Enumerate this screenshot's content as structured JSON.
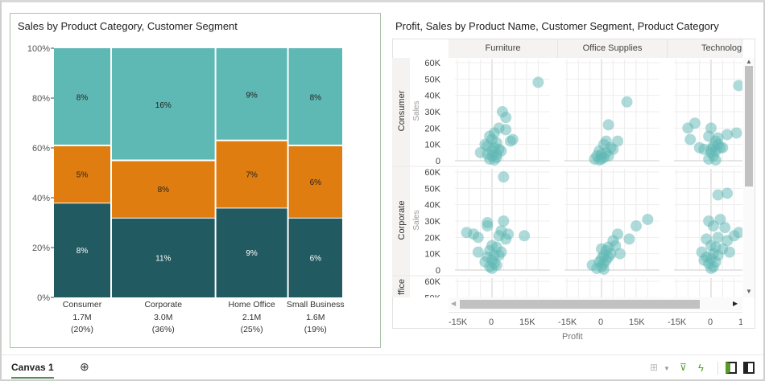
{
  "canvas_tabs": {
    "active": "Canvas 1",
    "add_icon": "plus-circle-icon"
  },
  "toolbar_icons": [
    "layout-grid-icon",
    "chevron-down-icon",
    "brush-icon",
    "lightning-icon",
    "left-panel-icon",
    "right-panel-icon"
  ],
  "chart_data": [
    {
      "type": "mosaic",
      "title": "Sales by Product Category, Customer Segment",
      "categories": [
        "Consumer",
        "Corporate",
        "Home Office",
        "Small Business"
      ],
      "category_totals": [
        "1.7M",
        "3.0M",
        "2.1M",
        "1.6M"
      ],
      "category_shares": [
        "(20%)",
        "(36%)",
        "(25%)",
        "(19%)"
      ],
      "column_widths_pct": [
        20,
        36,
        25,
        19
      ],
      "layer_colors": [
        "#225a62",
        "#df7d10",
        "#5eb8b3"
      ],
      "stacks_pct": [
        [
          38,
          23,
          39
        ],
        [
          32,
          23,
          45
        ],
        [
          36,
          27,
          37
        ],
        [
          32,
          29,
          39
        ]
      ],
      "data_labels": [
        [
          "8%",
          "5%",
          "8%"
        ],
        [
          "11%",
          "8%",
          "16%"
        ],
        [
          "9%",
          "7%",
          "9%"
        ],
        [
          "6%",
          "6%",
          "8%"
        ]
      ],
      "y_ticks": [
        "0%",
        "20%",
        "40%",
        "60%",
        "80%",
        "100%"
      ],
      "ylim": [
        0,
        100
      ]
    },
    {
      "type": "scatter",
      "title": "Profit, Sales by Product Name, Customer Segment, Product Category",
      "columns": [
        "Furniture",
        "Office Supplies",
        "Technology"
      ],
      "rows": [
        "Consumer",
        "Corporate",
        "Home Office"
      ],
      "row_label_visible": [
        "Consumer",
        "Corporate",
        "ffice"
      ],
      "xlabel": "Profit",
      "ylabel": "Sales",
      "x_ticks": [
        "-15K",
        "0",
        "15K"
      ],
      "y_ticks": [
        "0",
        "10K",
        "20K",
        "30K",
        "40K",
        "50K",
        "60K"
      ],
      "xlim": [
        -16,
        25
      ],
      "ylim": [
        0,
        62
      ],
      "units": "K",
      "color": "#5eb8b3",
      "points": {
        "Consumer": {
          "Furniture": [
            [
              20,
              48
            ],
            [
              4.5,
              30
            ],
            [
              6,
              26.5
            ],
            [
              9,
              13
            ],
            [
              8,
              12
            ],
            [
              3,
              20
            ],
            [
              6,
              19
            ],
            [
              1,
              17
            ],
            [
              -1,
              15
            ],
            [
              0,
              13
            ],
            [
              2,
              11
            ],
            [
              -2,
              9
            ],
            [
              1,
              8
            ],
            [
              3,
              7
            ],
            [
              -5,
              5
            ],
            [
              -2,
              4
            ],
            [
              0,
              3
            ],
            [
              2,
              2
            ],
            [
              -1,
              1
            ],
            [
              1,
              0.5
            ],
            [
              4,
              6
            ],
            [
              -3,
              10
            ],
            [
              0,
              6
            ],
            [
              2,
              4
            ]
          ],
          "Office Supplies": [
            [
              11,
              36
            ],
            [
              3,
              22
            ],
            [
              7,
              12
            ],
            [
              2,
              12
            ],
            [
              1,
              10
            ],
            [
              4,
              8
            ],
            [
              -1,
              6
            ],
            [
              2,
              5
            ],
            [
              0,
              4
            ],
            [
              -2,
              3
            ],
            [
              1,
              2
            ],
            [
              -3,
              1
            ],
            [
              0,
              1
            ],
            [
              3,
              3
            ],
            [
              5,
              7
            ],
            [
              -1,
              0.5
            ]
          ],
          "Technology": [
            [
              12,
              46
            ],
            [
              -10,
              20
            ],
            [
              -7,
              23
            ],
            [
              -9,
              13
            ],
            [
              0,
              20
            ],
            [
              -1,
              15
            ],
            [
              3,
              14
            ],
            [
              7,
              16
            ],
            [
              11,
              17
            ],
            [
              -5,
              8
            ],
            [
              2,
              12
            ],
            [
              3,
              10
            ],
            [
              5,
              8
            ],
            [
              1,
              9
            ],
            [
              0,
              7
            ],
            [
              2,
              6
            ],
            [
              -3,
              7
            ],
            [
              0,
              5
            ],
            [
              1,
              3
            ],
            [
              -1,
              1
            ],
            [
              2,
              0.5
            ],
            [
              4,
              8
            ]
          ]
        },
        "Corporate": {
          "Furniture": [
            [
              5,
              57
            ],
            [
              -11,
              23
            ],
            [
              -8,
              22
            ],
            [
              -6,
              20
            ],
            [
              -2,
              29
            ],
            [
              -2,
              27
            ],
            [
              5,
              30
            ],
            [
              4,
              24
            ],
            [
              3,
              21
            ],
            [
              7,
              22
            ],
            [
              6,
              19
            ],
            [
              14,
              21
            ],
            [
              -6,
              11
            ],
            [
              0,
              15
            ],
            [
              2,
              14
            ],
            [
              -1,
              12
            ],
            [
              4,
              11
            ],
            [
              1,
              9
            ],
            [
              3,
              9
            ],
            [
              -2,
              8
            ],
            [
              0,
              6
            ],
            [
              -3,
              5
            ],
            [
              1,
              4
            ],
            [
              2,
              3
            ],
            [
              -1,
              2
            ],
            [
              0,
              1
            ]
          ],
          "Office Supplies": [
            [
              20,
              31
            ],
            [
              15,
              27
            ],
            [
              7,
              22
            ],
            [
              12,
              19
            ],
            [
              5,
              18
            ],
            [
              6,
              15
            ],
            [
              3,
              14
            ],
            [
              0,
              13
            ],
            [
              2,
              12
            ],
            [
              8,
              10
            ],
            [
              4,
              10
            ],
            [
              1,
              9
            ],
            [
              3,
              8
            ],
            [
              0,
              7
            ],
            [
              2,
              6
            ],
            [
              -1,
              5
            ],
            [
              1,
              4
            ],
            [
              -4,
              3
            ],
            [
              0,
              2
            ],
            [
              -2,
              1
            ],
            [
              1,
              0.5
            ]
          ],
          "Technology": [
            [
              3,
              46
            ],
            [
              7,
              47
            ],
            [
              -1,
              30
            ],
            [
              4,
              31
            ],
            [
              1,
              27
            ],
            [
              6,
              26
            ],
            [
              10,
              21
            ],
            [
              12,
              23
            ],
            [
              -2,
              19
            ],
            [
              3,
              20
            ],
            [
              7,
              18
            ],
            [
              -4,
              11
            ],
            [
              0,
              15
            ],
            [
              2,
              14
            ],
            [
              5,
              13
            ],
            [
              8,
              11
            ],
            [
              1,
              10
            ],
            [
              3,
              9
            ],
            [
              -2,
              8
            ],
            [
              0,
              7
            ],
            [
              2,
              5
            ],
            [
              -1,
              4
            ],
            [
              1,
              2
            ],
            [
              0,
              1
            ],
            [
              -3,
              6
            ]
          ]
        }
      }
    }
  ]
}
